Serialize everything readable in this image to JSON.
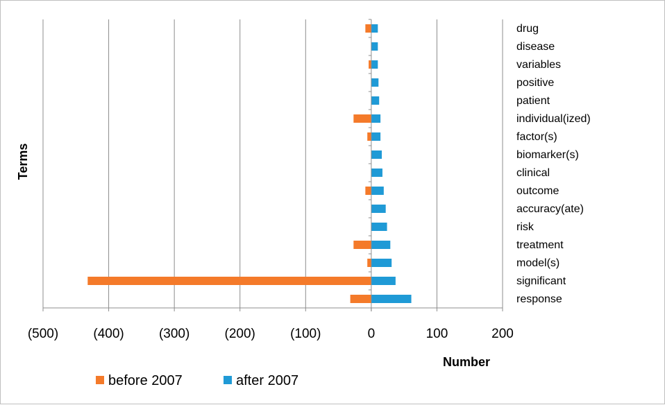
{
  "chart_data": {
    "type": "bar",
    "orientation": "horizontal",
    "categories": [
      "drug",
      " disease",
      "variables",
      "positive",
      " patient",
      "individual(ized)",
      " factor(s)",
      "biomarker(s)",
      "clinical",
      "outcome",
      "accuracy(ate)",
      "risk",
      "treatment",
      "model(s)",
      "significant",
      "response"
    ],
    "series": [
      {
        "name": "before 2007",
        "color": "#f47a2a",
        "values": [
          -9,
          0,
          -4,
          0,
          0,
          -27,
          -6,
          0,
          0,
          -9,
          0,
          0,
          -27,
          -6,
          -432,
          -32
        ]
      },
      {
        "name": "after 2007",
        "color": "#1f9ad6",
        "values": [
          10,
          10,
          10,
          11,
          12,
          14,
          14,
          16,
          17,
          19,
          22,
          24,
          29,
          31,
          37,
          61
        ]
      }
    ],
    "xlabel": "Number",
    "ylabel": "Terms",
    "xlim": [
      -500,
      200
    ],
    "xticks": [
      -500,
      -400,
      -300,
      -200,
      -100,
      0,
      100,
      200
    ],
    "xtick_labels": [
      "(500)",
      "(400)",
      "(300)",
      "(200)",
      "(100)",
      "0",
      "100",
      "200"
    ],
    "grid": true,
    "legend_position": "bottom"
  }
}
